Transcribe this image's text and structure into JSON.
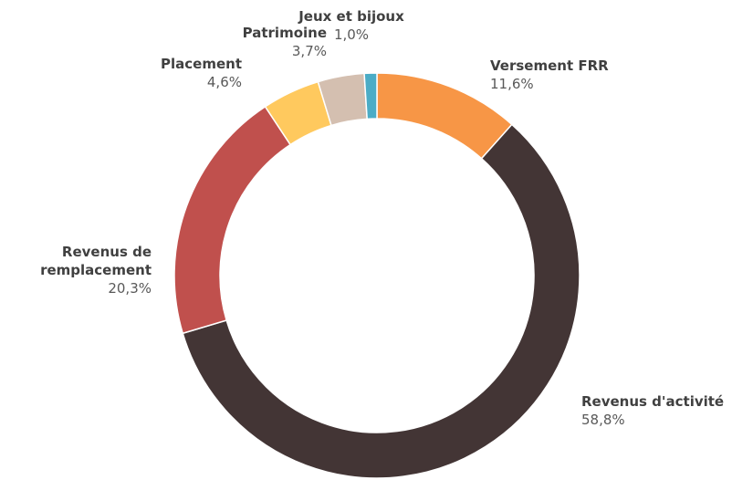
{
  "chart_data": {
    "type": "donut",
    "categories": [
      "Versement FRR",
      "Revenus d'activité",
      "Revenus de remplacement",
      "Placement",
      "Patrimoine",
      "Jeux et bijoux"
    ],
    "values": [
      11.6,
      58.8,
      20.3,
      4.6,
      3.7,
      1.0
    ],
    "value_labels": [
      "11,6%",
      "58,8%",
      "20,3%",
      "4,6%",
      "3,7%",
      "1,0%"
    ],
    "colors": [
      "#f79646",
      "#433535",
      "#c0504d",
      "#ffc95e",
      "#d4bfb0",
      "#4bacc6"
    ]
  }
}
